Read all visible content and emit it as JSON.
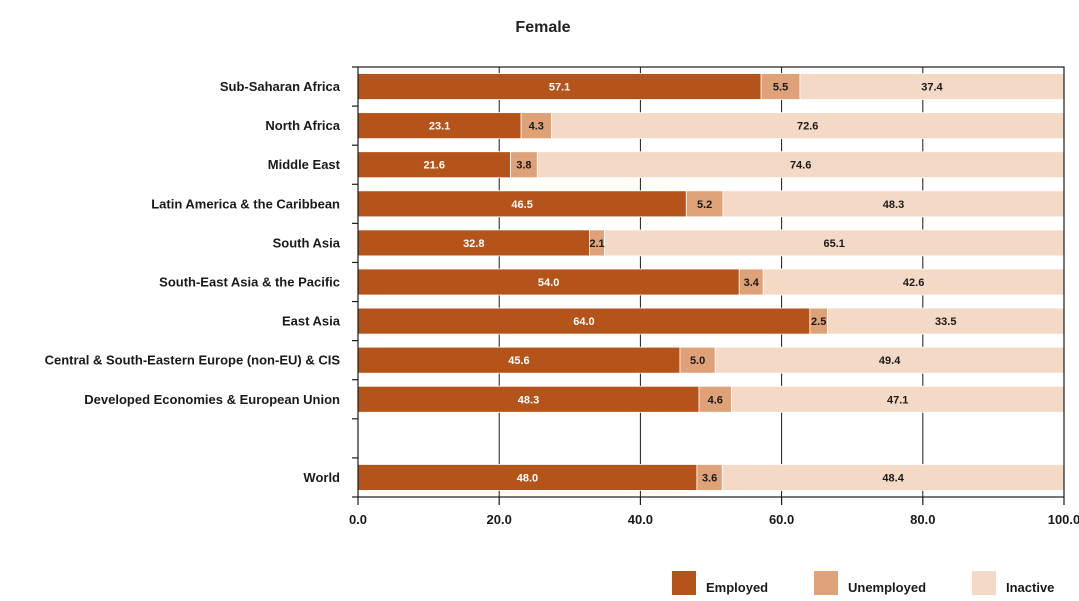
{
  "chart_data": {
    "type": "bar",
    "orientation": "horizontal",
    "stacked": true,
    "title": "Female",
    "categories": [
      "Sub-Saharan Africa",
      "North Africa",
      "Middle East",
      "Latin America & the Caribbean",
      "South Asia",
      "South-East Asia & the Pacific",
      "East Asia",
      "Central & South-Eastern Europe (non-EU) & CIS",
      "Developed Economies & European Union",
      "",
      "World"
    ],
    "series": [
      {
        "name": "Employed",
        "color": "#b5541a",
        "label_color": "#ffffff",
        "values": [
          57.1,
          23.1,
          21.6,
          46.5,
          32.8,
          54.0,
          64.0,
          45.6,
          48.3,
          null,
          48.0
        ]
      },
      {
        "name": "Unemployed",
        "color": "#dfa278",
        "label_color": "#1a1a1a",
        "values": [
          5.5,
          4.3,
          3.8,
          5.2,
          2.1,
          3.4,
          2.5,
          5.0,
          4.6,
          null,
          3.6
        ]
      },
      {
        "name": "Inactive",
        "color": "#f4d9c6",
        "label_color": "#1a1a1a",
        "values": [
          37.4,
          72.6,
          74.6,
          48.3,
          65.1,
          42.6,
          33.5,
          49.4,
          47.1,
          null,
          48.4
        ]
      }
    ],
    "value_labels": [
      [
        "57.1",
        "23.1",
        "21.6",
        "46.5",
        "32.8",
        "54.0",
        "64.0",
        "45.6",
        "48.3",
        "",
        "48.0"
      ],
      [
        "5.5",
        "4.3",
        "3.8",
        "5.2",
        "2.1",
        "3.4",
        "2.5",
        "5.0",
        "4.6",
        "",
        "3.6"
      ],
      [
        "37.4",
        "72.6",
        "74.6",
        "48.3",
        "65.1",
        "42.6",
        "33.5",
        "49.4",
        "47.1",
        "",
        "48.4"
      ]
    ],
    "xlim": [
      0,
      100
    ],
    "xticks": [
      0,
      20,
      40,
      60,
      80,
      100
    ],
    "xtick_labels": [
      "0.0",
      "20.0",
      "40.0",
      "60.0",
      "80.0",
      "100.0"
    ],
    "grid": "vertical",
    "legend_position": "bottom-right"
  }
}
